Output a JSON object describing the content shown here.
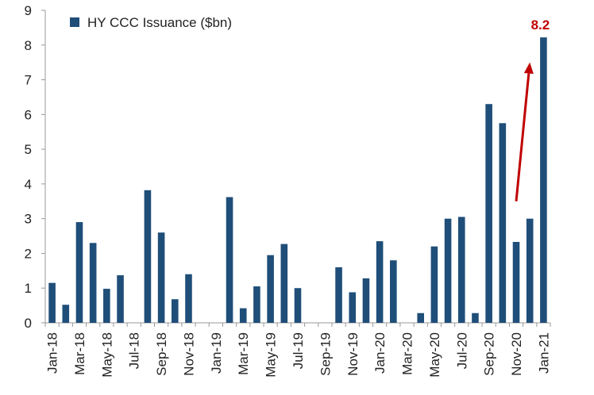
{
  "chart_data": {
    "type": "bar",
    "series": [
      {
        "name": "HY CCC Issuance ($bn)",
        "color": "#1f4e79",
        "values": [
          1.15,
          0.52,
          2.9,
          2.3,
          0.98,
          1.37,
          0,
          3.82,
          2.6,
          0.68,
          1.4,
          0,
          0,
          3.62,
          0.42,
          1.05,
          1.95,
          2.27,
          1.0,
          0,
          0,
          1.6,
          0.88,
          1.28,
          2.35,
          1.8,
          0,
          0.28,
          2.2,
          3.0,
          3.05,
          0.28,
          6.3,
          5.75,
          2.33,
          3.0,
          8.22
        ]
      }
    ],
    "categories": [
      "Jan-18",
      "Feb-18",
      "Mar-18",
      "Apr-18",
      "May-18",
      "Jun-18",
      "Jul-18",
      "Aug-18",
      "Sep-18",
      "Oct-18",
      "Nov-18",
      "Dec-18",
      "Jan-19",
      "Feb-19",
      "Mar-19",
      "Apr-19",
      "May-19",
      "Jun-19",
      "Jul-19",
      "Aug-19",
      "Sep-19",
      "Oct-19",
      "Nov-19",
      "Dec-19",
      "Jan-20",
      "Feb-20",
      "Mar-20",
      "Apr-20",
      "May-20",
      "Jun-20",
      "Jul-20",
      "Aug-20",
      "Sep-20",
      "Oct-20",
      "Nov-20",
      "Dec-20",
      "Jan-21"
    ],
    "x_tick_labels": [
      "Jan-18",
      "Mar-18",
      "May-18",
      "Jul-18",
      "Sep-18",
      "Nov-18",
      "Jan-19",
      "Mar-19",
      "May-19",
      "Jul-19",
      "Sep-19",
      "Nov-19",
      "Jan-20",
      "Mar-20",
      "May-20",
      "Jul-20",
      "Sep-20",
      "Nov-20",
      "Jan-21"
    ],
    "y_ticks": [
      "0",
      "1",
      "2",
      "3",
      "4",
      "5",
      "6",
      "7",
      "8",
      "9"
    ],
    "ylim": [
      0,
      9
    ],
    "grid": false,
    "legend": "top-left",
    "annotation": {
      "text": "8.2",
      "color": "#c00000",
      "arrow_from": {
        "category": "Nov-20",
        "value": 3.5
      },
      "arrow_to": {
        "category": "Dec-20",
        "value": 7.5
      }
    }
  }
}
